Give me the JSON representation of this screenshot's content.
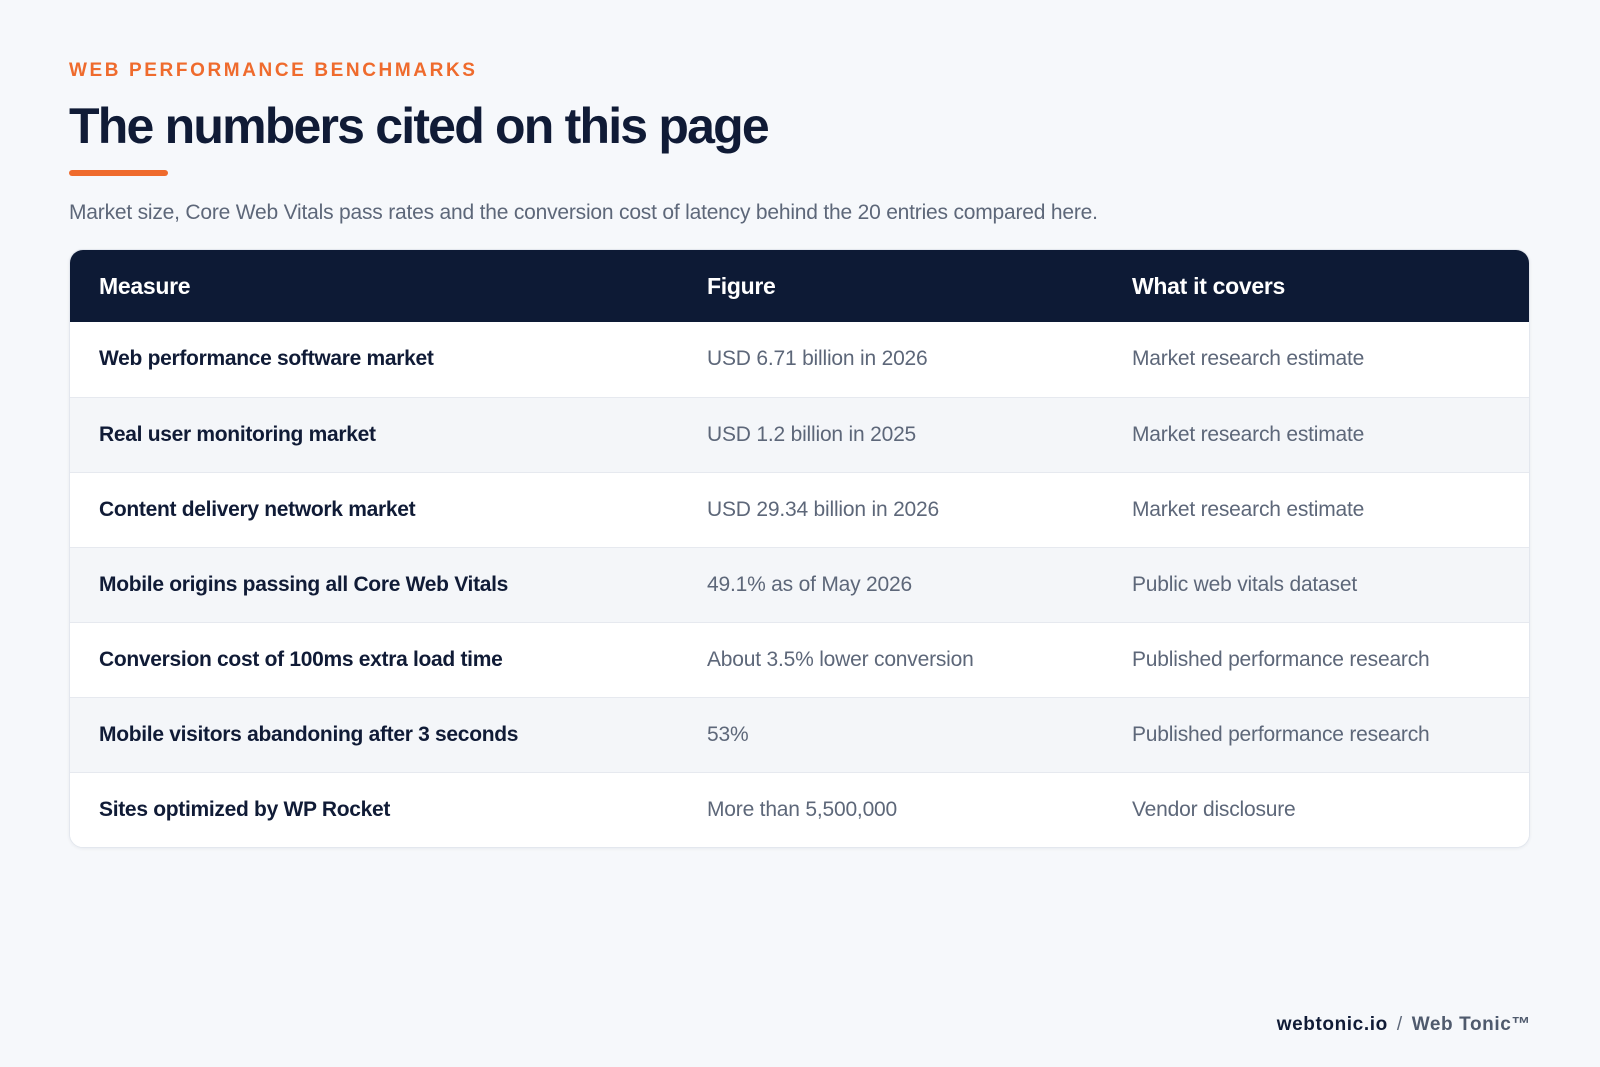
{
  "header": {
    "eyebrow": "WEB PERFORMANCE BENCHMARKS",
    "title": "The numbers cited on this page",
    "subtitle": "Market size, Core Web Vitals pass rates and the conversion cost of latency behind the 20 entries compared here."
  },
  "table": {
    "columns": [
      "Measure",
      "Figure",
      "What it covers"
    ],
    "rows": [
      {
        "measure": "Web performance software market",
        "figure": "USD 6.71 billion in 2026",
        "covers": "Market research estimate"
      },
      {
        "measure": "Real user monitoring market",
        "figure": "USD 1.2 billion in 2025",
        "covers": "Market research estimate"
      },
      {
        "measure": "Content delivery network market",
        "figure": "USD 29.34 billion in 2026",
        "covers": "Market research estimate"
      },
      {
        "measure": "Mobile origins passing all Core Web Vitals",
        "figure": "49.1% as of May 2026",
        "covers": "Public web vitals dataset"
      },
      {
        "measure": "Conversion cost of 100ms extra load time",
        "figure": "About 3.5% lower conversion",
        "covers": "Published performance research"
      },
      {
        "measure": "Mobile visitors abandoning after 3 seconds",
        "figure": "53%",
        "covers": "Published performance research"
      },
      {
        "measure": "Sites optimized by WP Rocket",
        "figure": "More than 5,500,000",
        "covers": "Vendor disclosure"
      }
    ]
  },
  "footer": {
    "domain": "webtonic.io",
    "separator": "/",
    "brand": "Web Tonic™"
  },
  "colors": {
    "accent": "#ef6b2d",
    "header_bg": "#0d1a35",
    "title_text": "#101b36",
    "muted_text": "#5d6779"
  }
}
